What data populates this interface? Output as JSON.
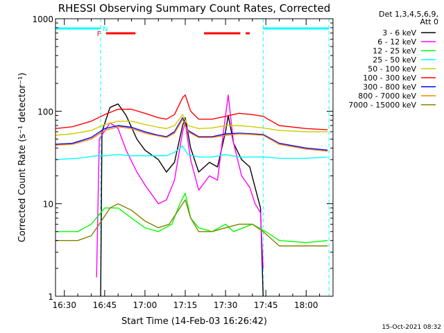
{
  "chart_data": {
    "type": "line",
    "title": "RHESSI Observing Summary Count Rates, Corrected",
    "xlabel": "Start Time (14-Feb-03 16:26:42)",
    "ylabel": "Corrected Count Rate (s⁻¹ detector⁻¹)",
    "yscale": "log",
    "ylim": [
      1,
      1000
    ],
    "xlim": [
      "16:26:42",
      "18:10:00"
    ],
    "x_ticks": [
      "16:30",
      "16:45",
      "17:00",
      "17:15",
      "17:30",
      "17:45",
      "18:00"
    ],
    "y_ticks": [
      "1",
      "10",
      "100",
      "1000"
    ],
    "grid": false,
    "legend_position": "right",
    "legend_header": [
      "Det 1,3,4,5,6,9,",
      "Att 0"
    ],
    "timestamp": "15-Oct-2021 08:32",
    "flags": {
      "N_label": "N",
      "F_label": "F",
      "night_intervals": [
        [
          "16:26:42",
          "16:43:30"
        ],
        [
          "17:44:00",
          "18:08:30"
        ]
      ],
      "flare_intervals": [
        [
          "16:45:30",
          "16:56:30"
        ],
        [
          "17:22:00",
          "17:35:30"
        ],
        [
          "17:37:30",
          "17:39:00"
        ]
      ],
      "dashed_lines": [
        "16:43:30",
        "17:44:00",
        "18:08:30"
      ],
      "solid_lines": [
        "16:26:42"
      ]
    },
    "series": [
      {
        "name": "3 - 6 keV",
        "color": "#000000",
        "points": [
          [
            "16:43:30",
            1
          ],
          [
            "16:44",
            60
          ],
          [
            "16:47",
            110
          ],
          [
            "16:50",
            120
          ],
          [
            "16:53",
            90
          ],
          [
            "16:57",
            50
          ],
          [
            "17:00",
            38
          ],
          [
            "17:05",
            30
          ],
          [
            "17:08",
            22
          ],
          [
            "17:11",
            28
          ],
          [
            "17:14",
            70
          ],
          [
            "17:15",
            85
          ],
          [
            "17:17",
            40
          ],
          [
            "17:20",
            22
          ],
          [
            "17:24",
            28
          ],
          [
            "17:27",
            25
          ],
          [
            "17:30",
            60
          ],
          [
            "17:31",
            90
          ],
          [
            "17:33",
            45
          ],
          [
            "17:36",
            30
          ],
          [
            "17:39",
            25
          ],
          [
            "17:41",
            15
          ],
          [
            "17:43",
            9
          ],
          [
            "17:44",
            1
          ]
        ]
      },
      {
        "name": "6 - 12 keV",
        "color": "#ff00ff",
        "points": [
          [
            "16:42",
            1.6
          ],
          [
            "16:43",
            50
          ],
          [
            "16:47",
            75
          ],
          [
            "16:50",
            65
          ],
          [
            "16:53",
            38
          ],
          [
            "16:57",
            22
          ],
          [
            "17:00",
            16
          ],
          [
            "17:05",
            10
          ],
          [
            "17:08",
            11
          ],
          [
            "17:11",
            18
          ],
          [
            "17:14",
            60
          ],
          [
            "17:15",
            75
          ],
          [
            "17:17",
            30
          ],
          [
            "17:20",
            14
          ],
          [
            "17:24",
            20
          ],
          [
            "17:27",
            18
          ],
          [
            "17:30",
            90
          ],
          [
            "17:31",
            150
          ],
          [
            "17:33",
            45
          ],
          [
            "17:36",
            20
          ],
          [
            "17:39",
            15
          ],
          [
            "17:41",
            10
          ],
          [
            "17:43",
            8
          ],
          [
            "17:44",
            2
          ]
        ]
      },
      {
        "name": "12 - 25 keV",
        "color": "#00ff00",
        "points": [
          [
            "16:26:42",
            5
          ],
          [
            "16:35",
            5
          ],
          [
            "16:40",
            6
          ],
          [
            "16:45",
            9
          ],
          [
            "16:50",
            9
          ],
          [
            "16:55",
            7
          ],
          [
            "17:00",
            5.5
          ],
          [
            "17:05",
            5
          ],
          [
            "17:10",
            6
          ],
          [
            "17:13",
            10
          ],
          [
            "17:15",
            13
          ],
          [
            "17:17",
            7
          ],
          [
            "17:20",
            5.5
          ],
          [
            "17:25",
            5
          ],
          [
            "17:30",
            6
          ],
          [
            "17:33",
            5
          ],
          [
            "17:40",
            6
          ],
          [
            "17:45",
            5
          ],
          [
            "17:50",
            4
          ],
          [
            "18:00",
            3.8
          ],
          [
            "18:08",
            4
          ]
        ]
      },
      {
        "name": "25 - 50 keV",
        "color": "#00ffff",
        "points": [
          [
            "16:26:42",
            30
          ],
          [
            "16:35",
            31
          ],
          [
            "16:42",
            33
          ],
          [
            "16:45",
            33
          ],
          [
            "16:50",
            34
          ],
          [
            "16:55",
            33
          ],
          [
            "17:00",
            33
          ],
          [
            "17:08",
            33
          ],
          [
            "17:11",
            36
          ],
          [
            "17:14",
            42
          ],
          [
            "17:16",
            34
          ],
          [
            "17:20",
            32
          ],
          [
            "17:25",
            32
          ],
          [
            "17:30",
            34
          ],
          [
            "17:35",
            32
          ],
          [
            "17:40",
            32
          ],
          [
            "17:45",
            32
          ],
          [
            "17:50",
            31
          ],
          [
            "18:00",
            31
          ],
          [
            "18:08",
            32
          ]
        ]
      },
      {
        "name": "50 - 100 keV",
        "color": "#cccc00",
        "points": [
          [
            "16:26:42",
            55
          ],
          [
            "16:33",
            57
          ],
          [
            "16:40",
            62
          ],
          [
            "16:45",
            72
          ],
          [
            "16:50",
            78
          ],
          [
            "16:55",
            78
          ],
          [
            "17:00",
            72
          ],
          [
            "17:05",
            67
          ],
          [
            "17:08",
            65
          ],
          [
            "17:11",
            70
          ],
          [
            "17:14",
            92
          ],
          [
            "17:16",
            70
          ],
          [
            "17:20",
            65
          ],
          [
            "17:25",
            66
          ],
          [
            "17:30",
            70
          ],
          [
            "17:35",
            70
          ],
          [
            "17:40",
            68
          ],
          [
            "17:44",
            66
          ],
          [
            "17:50",
            62
          ],
          [
            "18:00",
            60
          ],
          [
            "18:08",
            60
          ]
        ]
      },
      {
        "name": "100 - 300 keV",
        "color": "#ff0000",
        "points": [
          [
            "16:26:42",
            65
          ],
          [
            "16:33",
            68
          ],
          [
            "16:40",
            78
          ],
          [
            "16:45",
            92
          ],
          [
            "16:50",
            105
          ],
          [
            "16:55",
            105
          ],
          [
            "17:00",
            95
          ],
          [
            "17:05",
            85
          ],
          [
            "17:08",
            82
          ],
          [
            "17:11",
            92
          ],
          [
            "17:14",
            140
          ],
          [
            "17:15",
            150
          ],
          [
            "17:17",
            100
          ],
          [
            "17:20",
            82
          ],
          [
            "17:25",
            82
          ],
          [
            "17:30",
            88
          ],
          [
            "17:35",
            95
          ],
          [
            "17:40",
            92
          ],
          [
            "17:44",
            88
          ],
          [
            "17:50",
            70
          ],
          [
            "18:00",
            65
          ],
          [
            "18:08",
            63
          ]
        ]
      },
      {
        "name": "300 - 800 keV",
        "color": "#0000ff",
        "points": [
          [
            "16:26:42",
            44
          ],
          [
            "16:33",
            45
          ],
          [
            "16:40",
            52
          ],
          [
            "16:45",
            65
          ],
          [
            "16:50",
            70
          ],
          [
            "16:55",
            67
          ],
          [
            "17:00",
            60
          ],
          [
            "17:05",
            55
          ],
          [
            "17:08",
            53
          ],
          [
            "17:11",
            60
          ],
          [
            "17:14",
            85
          ],
          [
            "17:16",
            62
          ],
          [
            "17:20",
            53
          ],
          [
            "17:25",
            53
          ],
          [
            "17:30",
            57
          ],
          [
            "17:35",
            58
          ],
          [
            "17:40",
            57
          ],
          [
            "17:44",
            56
          ],
          [
            "17:50",
            45
          ],
          [
            "18:00",
            40
          ],
          [
            "18:08",
            38
          ]
        ]
      },
      {
        "name": "800 - 7000 keV",
        "color": "#ff8000",
        "points": [
          [
            "16:26:42",
            43
          ],
          [
            "16:33",
            44
          ],
          [
            "16:40",
            50
          ],
          [
            "16:45",
            62
          ],
          [
            "16:50",
            68
          ],
          [
            "16:55",
            65
          ],
          [
            "17:00",
            58
          ],
          [
            "17:05",
            54
          ],
          [
            "17:08",
            52
          ],
          [
            "17:11",
            58
          ],
          [
            "17:14",
            82
          ],
          [
            "17:16",
            60
          ],
          [
            "17:20",
            52
          ],
          [
            "17:25",
            52
          ],
          [
            "17:30",
            55
          ],
          [
            "17:35",
            57
          ],
          [
            "17:40",
            56
          ],
          [
            "17:44",
            55
          ],
          [
            "17:50",
            44
          ],
          [
            "18:00",
            39
          ],
          [
            "18:08",
            37
          ]
        ]
      },
      {
        "name": "7000 - 15000 keV",
        "color": "#808000",
        "points": [
          [
            "16:26:42",
            4
          ],
          [
            "16:35",
            4
          ],
          [
            "16:40",
            4.5
          ],
          [
            "16:43",
            6
          ],
          [
            "16:47",
            9
          ],
          [
            "16:50",
            10
          ],
          [
            "16:55",
            8.5
          ],
          [
            "17:00",
            6.5
          ],
          [
            "17:05",
            5.5
          ],
          [
            "17:09",
            6
          ],
          [
            "17:13",
            9
          ],
          [
            "17:15",
            11
          ],
          [
            "17:17",
            7
          ],
          [
            "17:20",
            5
          ],
          [
            "17:25",
            5
          ],
          [
            "17:30",
            5.5
          ],
          [
            "17:35",
            6
          ],
          [
            "17:40",
            6
          ],
          [
            "17:44",
            5
          ],
          [
            "17:50",
            3.5
          ],
          [
            "18:00",
            3.5
          ],
          [
            "18:08",
            3.5
          ]
        ]
      }
    ]
  }
}
